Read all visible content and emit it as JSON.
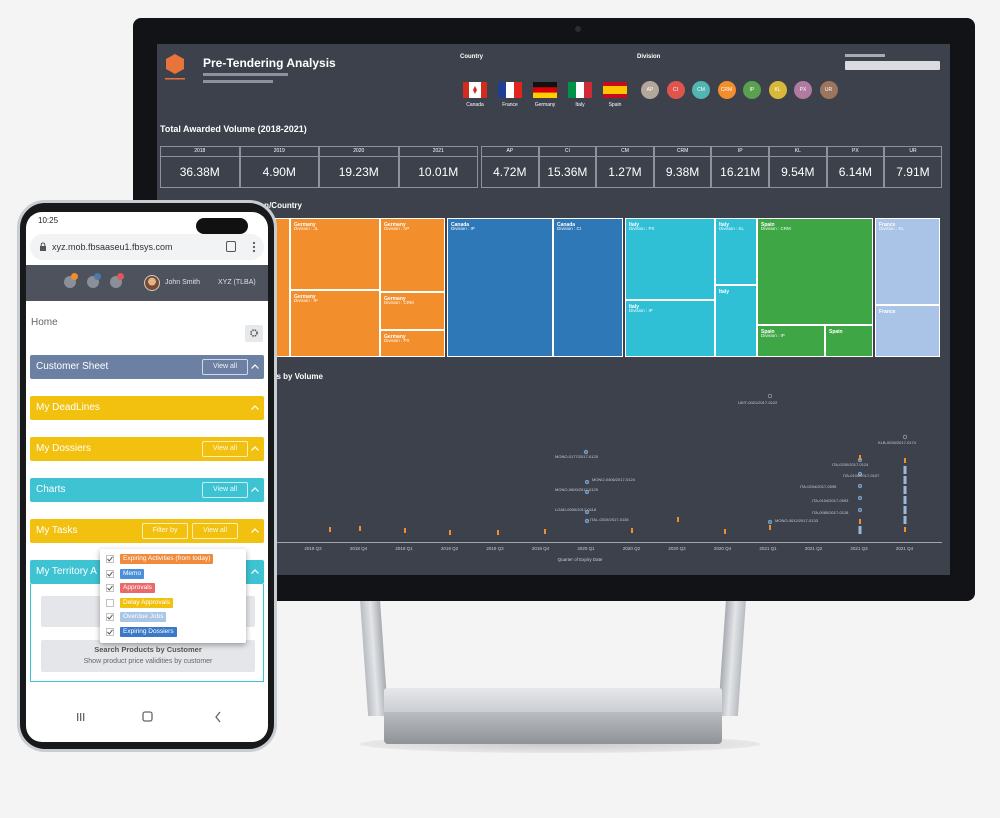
{
  "dashboard": {
    "title": "Pre-Tendering Analysis",
    "country_label": "Country",
    "countries": [
      "Canada",
      "France",
      "Germany",
      "Italy",
      "Spain"
    ],
    "division_label": "Division",
    "divisions": [
      "AP",
      "CI",
      "CM",
      "CRM",
      "IP",
      "KL",
      "PX",
      "UR"
    ],
    "kpi_title": "Total Awarded Volume (2018-2021)",
    "year_kpis": [
      {
        "label": "2018",
        "value": "36.38M"
      },
      {
        "label": "2019",
        "value": "4.90M"
      },
      {
        "label": "2020",
        "value": "19.23M"
      },
      {
        "label": "2021",
        "value": "10.01M"
      }
    ],
    "division_kpis": [
      {
        "label": "AP",
        "value": "4.72M"
      },
      {
        "label": "CI",
        "value": "15.36M"
      },
      {
        "label": "CM",
        "value": "1.27M"
      },
      {
        "label": "CRM",
        "value": "9.38M"
      },
      {
        "label": "IP",
        "value": "16.21M"
      },
      {
        "label": "KL",
        "value": "9.54M"
      },
      {
        "label": "PX",
        "value": "6.14M"
      },
      {
        "label": "UR",
        "value": "7.91M"
      }
    ],
    "treemap_title": "Awarded Volume by Division/Country",
    "treemap": [
      {
        "country": "Germany",
        "division": "Division : JL"
      },
      {
        "country": "Germany",
        "division": "Division : AP"
      },
      {
        "country": "Germany",
        "division": "Division : IP"
      },
      {
        "country": "Germany",
        "division": "Division : CRM"
      },
      {
        "country": "Germany",
        "division": "Division : PX"
      },
      {
        "country": "Canada",
        "division": "Division : IP"
      },
      {
        "country": "Canada",
        "division": "Division : CI"
      },
      {
        "country": "Italy",
        "division": "Division : PX"
      },
      {
        "country": "Italy",
        "division": "Division : KL"
      },
      {
        "country": "Italy",
        "division": "Division : IP"
      },
      {
        "country": "Italy"
      },
      {
        "country": "Spain",
        "division": "Division : CRM"
      },
      {
        "country": "Spain",
        "division": "Division : IP"
      },
      {
        "country": "Spain"
      },
      {
        "country": "France",
        "division": "Division : KL"
      },
      {
        "country": "France"
      }
    ],
    "scatter_title": "es by Volume",
    "scatter_labels": [
      "UKIT-0021/2017-0122",
      "MONO-0177/2017-0125",
      "MONO-0406/2017-0124",
      "MONO-0600/2017-0125",
      "LOAD-0090/2017-0118",
      "ITAL-0319/2017-0135",
      "ITA-0200/2017-0124",
      "ITA-0104/2017-0107",
      "ITA-0204/2017-0095",
      "ITA-0104/2017-0093",
      "ITA-0080/2017-0128",
      "MONO-0012/2017-0133",
      "KLB-0030/2017-0174"
    ],
    "quarters": [
      "2018 Q3",
      "2018 Q4",
      "2019 Q1",
      "2019 Q2",
      "2019 Q3",
      "2019 Q4",
      "2020 Q1",
      "2020 Q2",
      "2020 Q3",
      "2020 Q4",
      "2021 Q1",
      "2021 Q2",
      "2021 Q3",
      "2021 Q4"
    ],
    "x_axis_title": "Quarter of Expiry Date"
  },
  "phone": {
    "time": "10:25",
    "url": "xyz.mob.fbsaaseu1.fbsys.com",
    "user": "John Smith",
    "org": "XYZ (TLBA)",
    "breadcrumb": "Home",
    "panels": [
      {
        "title": "Customer Sheet",
        "actions": [
          "View all"
        ]
      },
      {
        "title": "My DeadLines"
      },
      {
        "title": "My Dossiers",
        "actions": [
          "View all"
        ]
      },
      {
        "title": "Charts",
        "actions": [
          "View all"
        ]
      },
      {
        "title": "My Tasks",
        "actions": [
          "Filter by",
          "View all"
        ]
      },
      {
        "title": "My Territory A"
      }
    ],
    "filter_options": [
      "Expiring Activities (from today)",
      "Memo",
      "Approvals",
      "Delay Approvals",
      "Overdue Jobs",
      "Expiring Dossiers"
    ],
    "button": {
      "title": "Search Products by Customer",
      "subtitle": "Show product price validities by customer"
    }
  }
}
